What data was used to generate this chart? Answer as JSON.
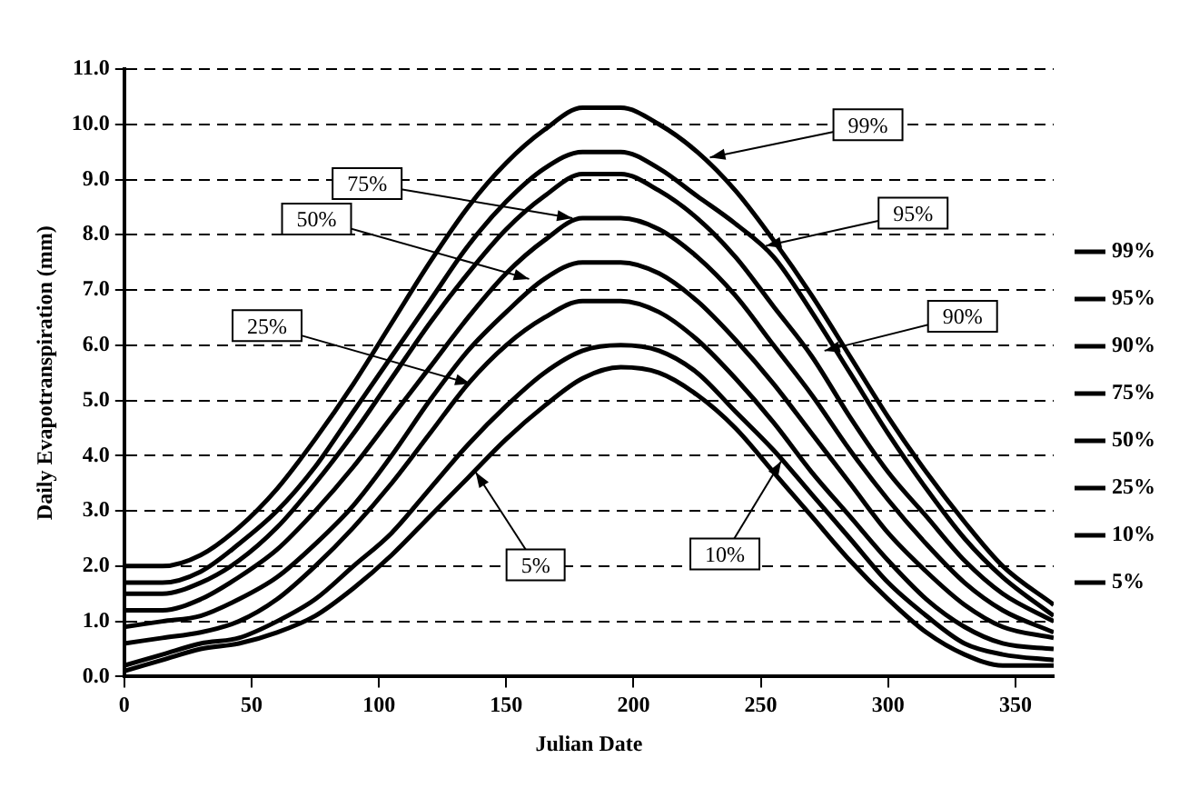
{
  "chart_data": {
    "type": "line",
    "xlabel": "Julian Date",
    "ylabel": "Daily Evapotranspiration (mm)",
    "x": [
      0,
      15,
      30,
      45,
      60,
      75,
      90,
      105,
      120,
      135,
      150,
      165,
      180,
      195,
      210,
      225,
      240,
      255,
      270,
      285,
      300,
      315,
      330,
      345,
      365
    ],
    "series": [
      {
        "name": "99%",
        "color": "#000000",
        "values": [
          2.0,
          2.0,
          2.2,
          2.7,
          3.4,
          4.3,
          5.3,
          6.4,
          7.5,
          8.5,
          9.3,
          9.9,
          10.3,
          10.3,
          10.0,
          9.5,
          8.8,
          7.9,
          6.9,
          5.8,
          4.7,
          3.7,
          2.8,
          2.0,
          1.3
        ]
      },
      {
        "name": "95%",
        "color": "#000000",
        "values": [
          1.7,
          1.7,
          1.9,
          2.4,
          3.0,
          3.8,
          4.8,
          5.8,
          6.8,
          7.8,
          8.6,
          9.2,
          9.5,
          9.5,
          9.2,
          8.7,
          8.2,
          7.6,
          6.6,
          5.5,
          4.4,
          3.4,
          2.5,
          1.8,
          1.1
        ]
      },
      {
        "name": "90%",
        "color": "#000000",
        "values": [
          1.5,
          1.5,
          1.7,
          2.1,
          2.7,
          3.5,
          4.4,
          5.4,
          6.4,
          7.3,
          8.1,
          8.7,
          9.1,
          9.1,
          8.8,
          8.3,
          7.6,
          6.7,
          5.8,
          4.7,
          3.7,
          2.9,
          2.1,
          1.5,
          1.0
        ]
      },
      {
        "name": "75%",
        "color": "#000000",
        "values": [
          1.2,
          1.2,
          1.4,
          1.8,
          2.3,
          3.0,
          3.8,
          4.7,
          5.6,
          6.5,
          7.3,
          7.9,
          8.3,
          8.3,
          8.1,
          7.6,
          6.9,
          6.0,
          5.1,
          4.1,
          3.2,
          2.4,
          1.7,
          1.2,
          0.8
        ]
      },
      {
        "name": "50%",
        "color": "#000000",
        "values": [
          0.9,
          1.0,
          1.1,
          1.4,
          1.8,
          2.4,
          3.1,
          4.0,
          5.0,
          5.9,
          6.6,
          7.2,
          7.5,
          7.5,
          7.3,
          6.8,
          6.1,
          5.3,
          4.4,
          3.5,
          2.6,
          1.9,
          1.3,
          0.9,
          0.7
        ]
      },
      {
        "name": "25%",
        "color": "#000000",
        "values": [
          0.6,
          0.7,
          0.8,
          1.0,
          1.4,
          2.0,
          2.7,
          3.5,
          4.4,
          5.3,
          6.0,
          6.5,
          6.8,
          6.8,
          6.6,
          6.1,
          5.4,
          4.6,
          3.7,
          2.9,
          2.1,
          1.4,
          0.9,
          0.6,
          0.5
        ]
      },
      {
        "name": "10%",
        "color": "#000000",
        "values": [
          0.2,
          0.4,
          0.6,
          0.7,
          1.0,
          1.4,
          2.0,
          2.6,
          3.4,
          4.2,
          4.9,
          5.5,
          5.9,
          6.0,
          5.9,
          5.5,
          4.8,
          4.1,
          3.3,
          2.5,
          1.7,
          1.1,
          0.6,
          0.4,
          0.3
        ]
      },
      {
        "name": "5%",
        "color": "#000000",
        "values": [
          0.1,
          0.3,
          0.5,
          0.6,
          0.8,
          1.1,
          1.6,
          2.2,
          2.9,
          3.6,
          4.3,
          4.9,
          5.4,
          5.6,
          5.5,
          5.1,
          4.5,
          3.7,
          2.9,
          2.1,
          1.4,
          0.8,
          0.4,
          0.2,
          0.2
        ]
      }
    ],
    "xlim": [
      0,
      365
    ],
    "xticks": [
      0,
      50,
      100,
      150,
      200,
      250,
      300,
      350
    ],
    "ylim": [
      0,
      11
    ],
    "yticks": [
      {
        "value": 0,
        "label": "0.0"
      },
      {
        "value": 1,
        "label": "1.0"
      },
      {
        "value": 2,
        "label": "2.0"
      },
      {
        "value": 3,
        "label": "3.0"
      },
      {
        "value": 4,
        "label": "4.0"
      },
      {
        "value": 5,
        "label": "5.0"
      },
      {
        "value": 6,
        "label": "6.0"
      },
      {
        "value": 7,
        "label": "7.0"
      },
      {
        "value": 8,
        "label": "8.0"
      },
      {
        "value": 9,
        "label": "9.0"
      },
      {
        "value": 10,
        "label": "10.0"
      },
      {
        "value": 11,
        "label": "11.0"
      }
    ],
    "grid": "y",
    "legend": "right",
    "marker": "none",
    "line_style": "solid",
    "annotations": [
      {
        "text": "75%",
        "x": 176,
        "y": 8.3
      },
      {
        "text": "50%",
        "x": 159,
        "y": 7.2
      },
      {
        "text": "25%",
        "x": 136,
        "y": 5.3
      },
      {
        "text": "5%",
        "x": 138,
        "y": 3.7
      },
      {
        "text": "10%",
        "x": 258,
        "y": 3.9
      },
      {
        "text": "99%",
        "x": 230,
        "y": 9.4
      },
      {
        "text": "95%",
        "x": 252,
        "y": 7.8
      },
      {
        "text": "90%",
        "x": 275,
        "y": 5.9
      }
    ]
  }
}
